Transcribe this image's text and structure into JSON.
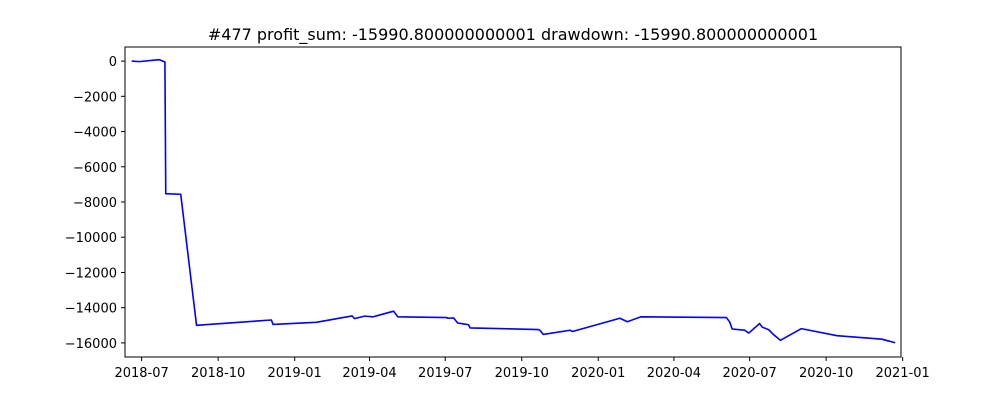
{
  "chart_data": {
    "type": "line",
    "title": "#477   profit_sum: -15990.800000000001 drawdown: -15990.800000000001",
    "xlabel": "",
    "ylabel": "",
    "x_axis_type": "date",
    "xlim": [
      "2018-06-11",
      "2020-12-30"
    ],
    "ylim": [
      -16800,
      800
    ],
    "grid": false,
    "legend": "none",
    "x_tick_labels": [
      "2018-07",
      "2018-10",
      "2019-01",
      "2019-04",
      "2019-07",
      "2019-10",
      "2020-01",
      "2020-04",
      "2020-07",
      "2020-10",
      "2021-01"
    ],
    "x_tick_dates": [
      "2018-07-01",
      "2018-10-01",
      "2019-01-01",
      "2019-04-01",
      "2019-07-01",
      "2019-10-01",
      "2020-01-01",
      "2020-04-01",
      "2020-07-01",
      "2020-10-01",
      "2021-01-01"
    ],
    "y_tick_labels": [
      "0",
      "−2000",
      "−4000",
      "−6000",
      "−8000",
      "−10000",
      "−12000",
      "−14000",
      "−16000"
    ],
    "y_tick_values": [
      0,
      -2000,
      -4000,
      -6000,
      -8000,
      -10000,
      -12000,
      -14000,
      -16000
    ],
    "line_color": "#0000ff",
    "series": [
      {
        "x": [
          "2018-06-19",
          "2018-06-28",
          "2018-07-22",
          "2018-07-29",
          "2018-07-30",
          "2018-08-17",
          "2018-09-05",
          "2018-12-04",
          "2018-12-06",
          "2019-01-27",
          "2019-03-11",
          "2019-03-14",
          "2019-03-26",
          "2019-04-05",
          "2019-04-30",
          "2019-05-05",
          "2019-07-03",
          "2019-07-04",
          "2019-07-11",
          "2019-07-16",
          "2019-07-24",
          "2019-07-29",
          "2019-07-31",
          "2019-10-21",
          "2019-10-23",
          "2019-10-27",
          "2019-11-28",
          "2019-12-01",
          "2020-01-27",
          "2020-02-05",
          "2020-02-21",
          "2020-06-03",
          "2020-06-07",
          "2020-06-10",
          "2020-06-25",
          "2020-06-30",
          "2020-07-13",
          "2020-07-16",
          "2020-07-24",
          "2020-07-29",
          "2020-08-07",
          "2020-09-01",
          "2020-10-14",
          "2020-12-07",
          "2020-12-23"
        ],
        "y": [
          0,
          -30,
          80,
          -50,
          -7530,
          -7560,
          -15000,
          -14700,
          -14950,
          -14830,
          -14470,
          -14620,
          -14480,
          -14520,
          -14200,
          -14520,
          -14560,
          -14600,
          -14580,
          -14870,
          -14930,
          -14970,
          -15150,
          -15240,
          -15290,
          -15520,
          -15280,
          -15350,
          -14600,
          -14800,
          -14520,
          -14560,
          -14810,
          -15210,
          -15280,
          -15440,
          -14900,
          -15100,
          -15250,
          -15500,
          -15850,
          -15190,
          -15590,
          -15790,
          -15990
        ]
      }
    ]
  }
}
